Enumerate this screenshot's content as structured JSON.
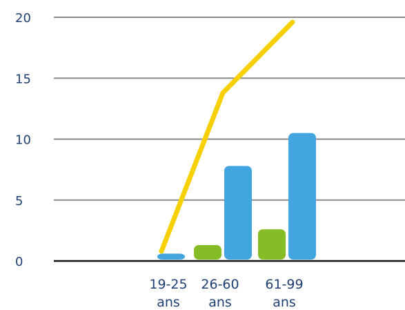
{
  "chart_data": {
    "type": "bar",
    "categories": [
      [
        "19-25",
        "ans"
      ],
      [
        "26-60",
        "ans"
      ],
      [
        "61-99",
        "ans"
      ]
    ],
    "series": [
      {
        "type": "bar",
        "color": "#86bc25",
        "values": [
          0,
          1.3,
          2.6
        ]
      },
      {
        "type": "bar",
        "color": "#42a5e0",
        "values": [
          0.6,
          7.8,
          10.5
        ]
      },
      {
        "type": "line",
        "color": "#f6d000",
        "values": [
          0.8,
          13.8,
          19.6
        ]
      }
    ],
    "yticks": [
      "0",
      "5",
      "10",
      "15",
      "20"
    ],
    "ylim": [
      0,
      20
    ],
    "grid": true,
    "legend": "none"
  }
}
